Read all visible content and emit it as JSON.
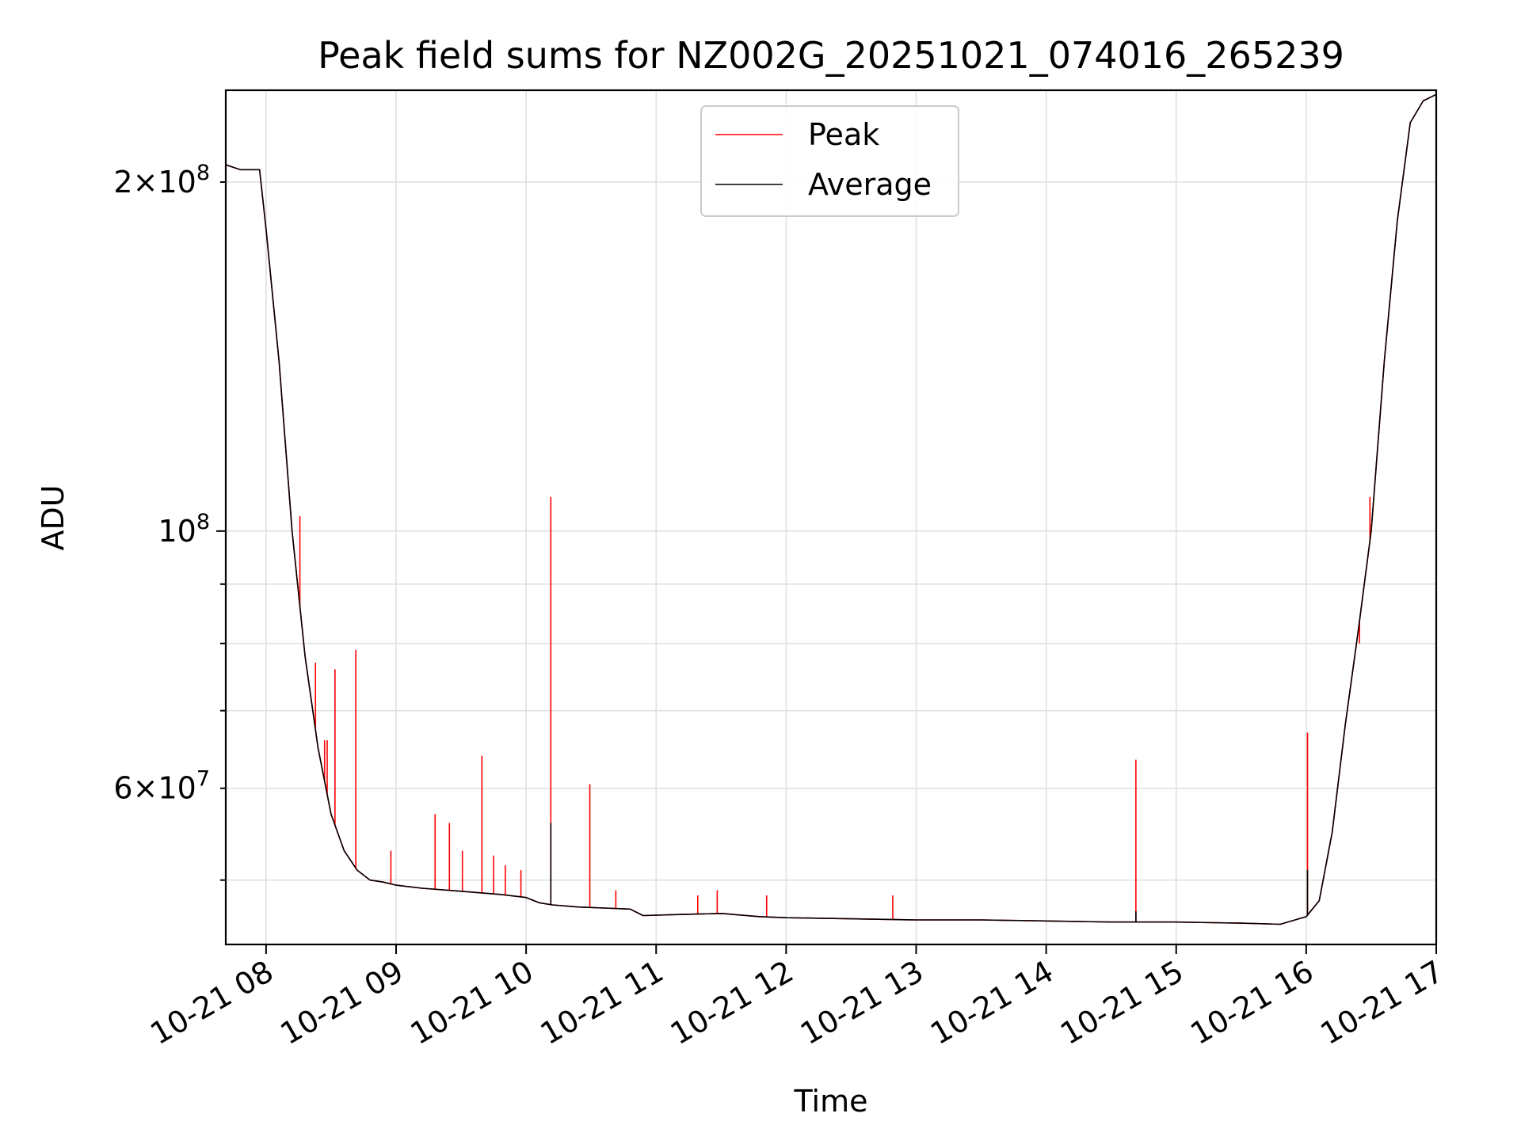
{
  "chart_data": {
    "type": "line",
    "title": "Peak field sums for NZ002G_20251021_074016_265239",
    "xlabel": "Time",
    "ylabel": "ADU",
    "yscale": "log",
    "ylim": [
      44000000,
      240000000
    ],
    "xlim_hours": [
      7.69,
      17.0
    ],
    "grid": true,
    "legend_position": "upper-center",
    "x_ticks": [
      {
        "value": 8,
        "label": "10-21 08"
      },
      {
        "value": 9,
        "label": "10-21 09"
      },
      {
        "value": 10,
        "label": "10-21 10"
      },
      {
        "value": 11,
        "label": "10-21 11"
      },
      {
        "value": 12,
        "label": "10-21 12"
      },
      {
        "value": 13,
        "label": "10-21 13"
      },
      {
        "value": 14,
        "label": "10-21 14"
      },
      {
        "value": 15,
        "label": "10-21 15"
      },
      {
        "value": 16,
        "label": "10-21 16"
      },
      {
        "value": 17,
        "label": "10-21 17"
      }
    ],
    "y_major_ticks": [
      {
        "value": 100000000,
        "base": "10",
        "exp": "8"
      }
    ],
    "y_minor_labeled_ticks": [
      {
        "value": 200000000,
        "mant": "2",
        "base": "10",
        "exp": "8"
      },
      {
        "value": 60000000,
        "mant": "6",
        "base": "10",
        "exp": "7"
      }
    ],
    "y_minor_ticks": [
      50000000,
      70000000,
      80000000,
      90000000
    ],
    "colors": {
      "peak": "#ff0000",
      "average": "#000000"
    },
    "series": [
      {
        "name": "Peak",
        "color": "#ff0000",
        "x": [
          7.69,
          7.8,
          7.95,
          8.0,
          8.1,
          8.2,
          8.3,
          8.4,
          8.5,
          8.6,
          8.7,
          8.8,
          8.9,
          9.0,
          9.2,
          9.5,
          9.8,
          10.0,
          10.1,
          10.2,
          10.4,
          10.6,
          10.8,
          10.9,
          11.2,
          11.5,
          11.8,
          12.0,
          12.5,
          13.0,
          13.5,
          14.0,
          14.5,
          15.0,
          15.5,
          15.8,
          16.0,
          16.1,
          16.2,
          16.3,
          16.4,
          16.5,
          16.6,
          16.7,
          16.8,
          16.9,
          17.0
        ],
        "y": [
          207000000,
          205000000,
          205000000,
          182000000,
          140000000,
          100000000,
          78000000,
          65000000,
          57000000,
          53000000,
          51000000,
          50000000,
          49800000,
          49500000,
          49200000,
          48900000,
          48600000,
          48300000,
          47800000,
          47600000,
          47400000,
          47300000,
          47200000,
          46600000,
          46700000,
          46800000,
          46500000,
          46400000,
          46300000,
          46200000,
          46200000,
          46100000,
          46000000,
          46000000,
          45900000,
          45800000,
          46500000,
          48000000,
          55000000,
          68000000,
          82000000,
          100000000,
          140000000,
          185000000,
          225000000,
          235000000,
          238000000
        ],
        "spikes": [
          {
            "x": 8.26,
            "y": 103000000
          },
          {
            "x": 8.38,
            "y": 77000000
          },
          {
            "x": 8.45,
            "y": 66000000
          },
          {
            "x": 8.47,
            "y": 66000000
          },
          {
            "x": 8.53,
            "y": 76000000
          },
          {
            "x": 8.69,
            "y": 79000000
          },
          {
            "x": 8.96,
            "y": 53000000
          },
          {
            "x": 9.3,
            "y": 57000000
          },
          {
            "x": 9.41,
            "y": 56000000
          },
          {
            "x": 9.51,
            "y": 53000000
          },
          {
            "x": 9.66,
            "y": 64000000
          },
          {
            "x": 9.75,
            "y": 52500000
          },
          {
            "x": 9.84,
            "y": 51500000
          },
          {
            "x": 9.96,
            "y": 51000000
          },
          {
            "x": 10.19,
            "y": 107000000
          },
          {
            "x": 10.49,
            "y": 60500000
          },
          {
            "x": 10.69,
            "y": 49000000
          },
          {
            "x": 11.32,
            "y": 48500000
          },
          {
            "x": 11.47,
            "y": 49000000
          },
          {
            "x": 11.85,
            "y": 48500000
          },
          {
            "x": 12.82,
            "y": 48500000
          },
          {
            "x": 14.69,
            "y": 63500000
          },
          {
            "x": 16.01,
            "y": 67000000
          },
          {
            "x": 16.41,
            "y": 80000000
          },
          {
            "x": 16.49,
            "y": 107000000
          }
        ]
      },
      {
        "name": "Average",
        "color": "#000000",
        "x": [
          7.69,
          7.8,
          7.95,
          8.0,
          8.1,
          8.2,
          8.3,
          8.4,
          8.5,
          8.6,
          8.7,
          8.8,
          8.9,
          9.0,
          9.2,
          9.5,
          9.8,
          10.0,
          10.1,
          10.2,
          10.4,
          10.6,
          10.8,
          10.9,
          11.2,
          11.5,
          11.8,
          12.0,
          12.5,
          13.0,
          13.5,
          14.0,
          14.5,
          15.0,
          15.5,
          15.8,
          16.0,
          16.1,
          16.2,
          16.3,
          16.4,
          16.5,
          16.6,
          16.7,
          16.8,
          16.9,
          17.0
        ],
        "y": [
          207000000,
          205000000,
          205000000,
          182000000,
          140000000,
          100000000,
          78000000,
          65000000,
          57000000,
          53000000,
          51000000,
          50000000,
          49800000,
          49500000,
          49200000,
          48900000,
          48600000,
          48300000,
          47800000,
          47600000,
          47400000,
          47300000,
          47200000,
          46600000,
          46700000,
          46800000,
          46500000,
          46400000,
          46300000,
          46200000,
          46200000,
          46100000,
          46000000,
          46000000,
          45900000,
          45800000,
          46500000,
          48000000,
          55000000,
          68000000,
          82000000,
          100000000,
          140000000,
          185000000,
          225000000,
          235000000,
          238000000
        ],
        "spikes": [
          {
            "x": 10.19,
            "y": 56000000
          },
          {
            "x": 16.01,
            "y": 51000000
          },
          {
            "x": 14.69,
            "y": 47000000
          }
        ]
      }
    ]
  }
}
